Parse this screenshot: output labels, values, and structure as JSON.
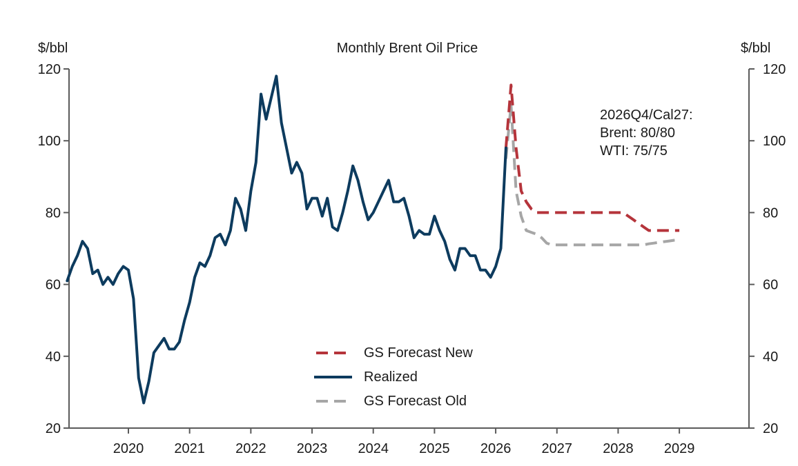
{
  "chart_data": {
    "type": "line",
    "title": "Monthly Brent Oil Price",
    "ylabel_left": "$/bbl",
    "ylabel_right": "$/bbl",
    "xlabel": "",
    "ylim": [
      20,
      120
    ],
    "yticks": [
      20,
      40,
      60,
      80,
      100,
      120
    ],
    "xlim": [
      "2019-01",
      "2029-12"
    ],
    "xticks": [
      "2020",
      "2021",
      "2022",
      "2023",
      "2024",
      "2025",
      "2026",
      "2027",
      "2028",
      "2029"
    ],
    "grid": false,
    "legend": {
      "position": "bottom-center",
      "entries": [
        "GS Forecast New",
        "Realized",
        "GS Forecast Old"
      ]
    },
    "annotation": [
      "2026Q4/Cal27:",
      "Brent: 80/80",
      "WTI: 75/75"
    ],
    "series": [
      {
        "name": "Realized",
        "color": "#0d3b5e",
        "style": "solid",
        "start": "2019-01",
        "values": [
          61,
          65,
          68,
          72,
          70,
          63,
          64,
          60,
          62,
          60,
          63,
          65,
          64,
          56,
          34,
          27,
          33,
          41,
          43,
          45,
          42,
          42,
          44,
          50,
          55,
          62,
          66,
          65,
          68,
          73,
          74,
          71,
          75,
          84,
          81,
          75,
          86,
          94,
          113,
          106,
          112,
          118,
          105,
          98,
          91,
          94,
          91,
          81,
          84,
          84,
          79,
          84,
          76,
          75,
          80,
          86,
          93,
          89,
          83,
          78,
          80,
          83,
          86,
          89,
          83,
          83,
          84,
          79,
          73,
          75,
          74,
          74,
          79,
          75,
          72,
          67,
          64,
          70,
          70,
          68,
          68,
          64,
          64,
          62,
          65,
          70,
          98
        ]
      },
      {
        "name": "GS Forecast New",
        "color": "#b5343b",
        "style": "dashed",
        "start": "2026-03",
        "values": [
          98,
          115.5,
          98,
          86,
          83,
          81,
          80,
          80,
          80,
          80,
          80,
          80,
          80,
          80,
          80,
          80,
          80,
          80,
          80,
          80,
          80,
          80,
          80,
          80,
          79,
          78,
          77,
          76,
          75,
          75,
          75,
          75,
          75,
          75,
          75
        ]
      },
      {
        "name": "GS Forecast Old",
        "color": "#a6a6a6",
        "style": "dashed",
        "start": "2026-03",
        "values": [
          95,
          110,
          86,
          79,
          75,
          74.5,
          74,
          73,
          71.5,
          71,
          71,
          71,
          71,
          71,
          71,
          71,
          71,
          71,
          71,
          71,
          71,
          71,
          71,
          71,
          71,
          71,
          71,
          71,
          71.3,
          71.5,
          71.7,
          71.9,
          72.1,
          72.3,
          72.4
        ]
      }
    ]
  }
}
